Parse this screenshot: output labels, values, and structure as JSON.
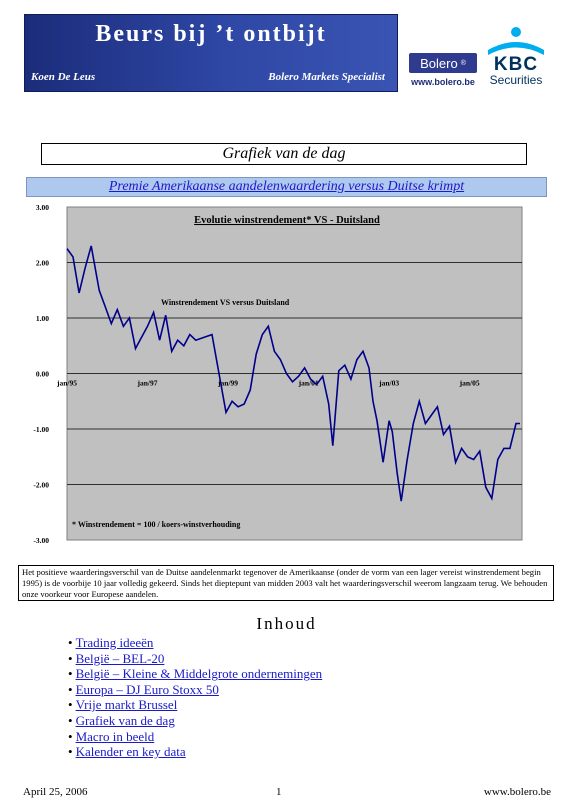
{
  "header": {
    "title": "Beurs bij ’t ontbijt",
    "author": "Koen De Leus",
    "role": "Bolero Markets Specialist",
    "bolero_logo": "Bolero",
    "bolero_reg": "®",
    "bolero_url": "www.bolero.be",
    "kbc_logo": "KBC",
    "kbc_sub": "Securities"
  },
  "section_title": "Grafiek van de dag",
  "headline": "Premie Amerikaanse aandelenwaardering versus Duitse krimpt",
  "chart_data": {
    "type": "line",
    "title": "Evolutie winstrendement* VS - Duitsland",
    "annotation": "Winstrendement VS versus Duitsland",
    "footnote": "* Winstrendement = 100 / koers-winstverhouding",
    "ylim": [
      -3,
      3
    ],
    "yticks": [
      "3.00",
      "2.00",
      "1.00",
      "0.00",
      "-1.00",
      "-2.00",
      "-3.00"
    ],
    "x_labels": [
      "jan/95",
      "jan/97",
      "jan/99",
      "jan/01",
      "jan/03",
      "jan/05"
    ],
    "x_label_positions": [
      1995,
      1997,
      1999,
      2001,
      2003,
      2005
    ],
    "xlim": [
      1995,
      2006.3
    ],
    "series": [
      {
        "color": "#00008b",
        "x": [
          1995.0,
          1995.15,
          1995.3,
          1995.45,
          1995.6,
          1995.8,
          1995.95,
          1996.1,
          1996.25,
          1996.4,
          1996.55,
          1996.7,
          1996.85,
          1997.0,
          1997.15,
          1997.3,
          1997.45,
          1997.6,
          1997.75,
          1997.9,
          1998.05,
          1998.2,
          1998.4,
          1998.6,
          1998.8,
          1998.95,
          1999.1,
          1999.25,
          1999.4,
          1999.55,
          1999.7,
          1999.85,
          2000.0,
          2000.15,
          2000.3,
          2000.45,
          2000.6,
          2000.75,
          2000.9,
          2001.05,
          2001.2,
          2001.35,
          2001.5,
          2001.6,
          2001.75,
          2001.9,
          2002.05,
          2002.2,
          2002.35,
          2002.5,
          2002.6,
          2002.7,
          2002.85,
          2003.0,
          2003.08,
          2003.2,
          2003.3,
          2003.45,
          2003.6,
          2003.75,
          2003.9,
          2004.05,
          2004.2,
          2004.35,
          2004.5,
          2004.65,
          2004.8,
          2004.95,
          2005.1,
          2005.25,
          2005.4,
          2005.55,
          2005.7,
          2005.85,
          2006.0,
          2006.15,
          2006.25
        ],
        "values": [
          2.25,
          2.1,
          1.45,
          1.9,
          2.3,
          1.5,
          1.2,
          0.9,
          1.15,
          0.85,
          1.0,
          0.45,
          0.65,
          0.85,
          1.1,
          0.6,
          1.05,
          0.4,
          0.6,
          0.5,
          0.7,
          0.6,
          0.65,
          0.7,
          -0.1,
          -0.7,
          -0.5,
          -0.6,
          -0.55,
          -0.3,
          0.35,
          0.7,
          0.85,
          0.4,
          0.25,
          0.0,
          -0.15,
          -0.05,
          0.1,
          -0.1,
          -0.2,
          -0.05,
          -0.55,
          -1.3,
          0.05,
          0.15,
          -0.1,
          0.25,
          0.4,
          0.1,
          -0.5,
          -0.85,
          -1.6,
          -0.85,
          -1.05,
          -1.8,
          -2.3,
          -1.55,
          -0.9,
          -0.5,
          -0.9,
          -0.75,
          -0.6,
          -1.1,
          -0.95,
          -1.6,
          -1.35,
          -1.5,
          -1.55,
          -1.4,
          -2.05,
          -2.25,
          -1.55,
          -1.35,
          -1.35,
          -0.9,
          -0.9
        ]
      }
    ]
  },
  "description": "Het positieve waarderingsverschil van de Duitse aandelenmarkt tegenover de Amerikaanse (onder de vorm van een lager vereist winstrendement begin 1995) is de voorbije 10 jaar volledig gekeerd. Sinds het dieptepunt van midden 2003 valt het waarderingsverschil weerom langzaam terug. We behouden onze voorkeur voor Europese aandelen.",
  "toc": {
    "title": "Inhoud",
    "bullet": "•",
    "items": [
      "Trading ideeën",
      "België – BEL-20",
      "België – Kleine & Middelgrote ondernemingen",
      "Europa – DJ Euro Stoxx 50",
      "Vrije markt Brussel",
      "Grafiek van de dag",
      "Macro in beeld",
      "Kalender en key data"
    ]
  },
  "footer": {
    "date": "April 25, 2006",
    "page": "1",
    "url": "www.bolero.be"
  }
}
